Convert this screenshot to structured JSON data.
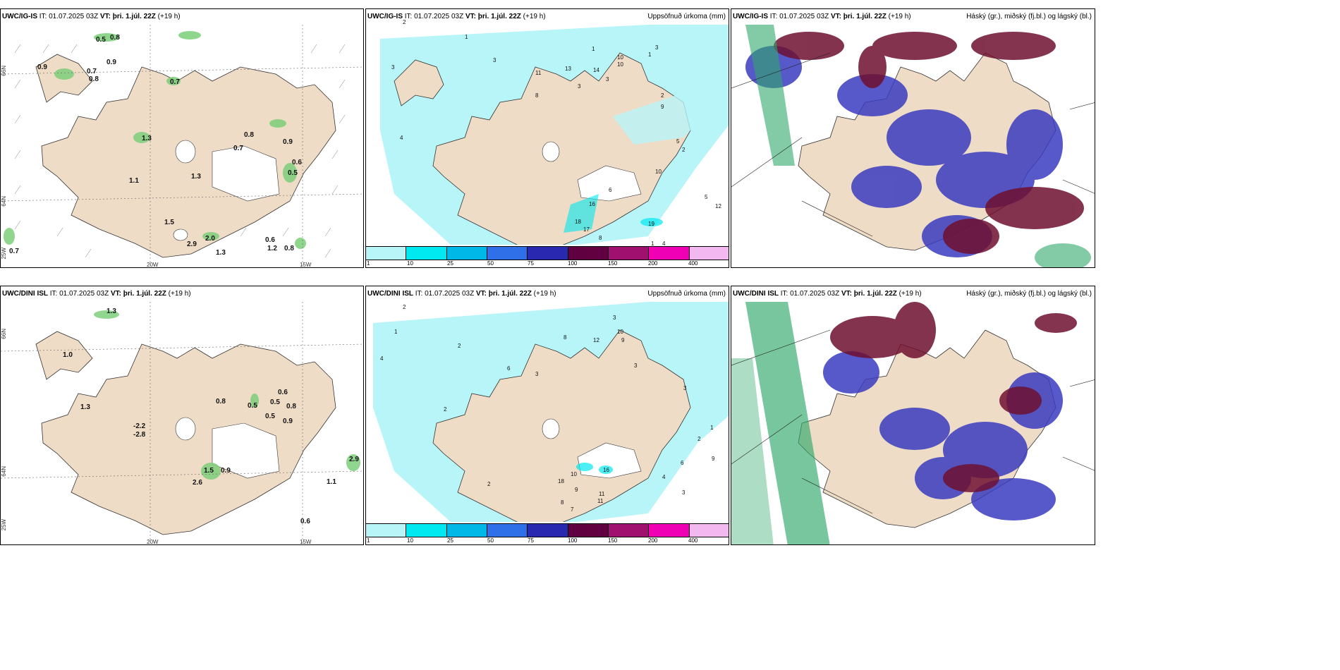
{
  "rows": [
    {
      "model": "UWC/IG-IS",
      "it": "IT: 01.07.2025 03Z",
      "vt_label": "VT:",
      "vt": "þri. 1.júl. 22Z",
      "lead": "(+19 h)",
      "wind_labels": [
        "0.5",
        "0.8",
        "0.9",
        "0.9",
        "0.7",
        "0.8",
        "0.7",
        "1.3",
        "0.8",
        "0.7",
        "1.1",
        "1.3",
        "0.9",
        "0.6",
        "0.5",
        "1.5",
        "2.0",
        "2.9",
        "1.3",
        "0.6",
        "1.2",
        "0.8",
        "0.7"
      ]
    },
    {
      "model": "UWC/DINI ISL",
      "it": "IT: 01.07.2025 03Z",
      "vt_label": "VT:",
      "vt": "þri. 1.júl. 22Z",
      "lead": "(+19 h)",
      "wind_labels": [
        "1.3",
        "1.0",
        "1.3",
        "0.8",
        "0.5",
        "0.6",
        "0.5",
        "0.8",
        "0.5",
        "0.9",
        "-2.2",
        "-2.8",
        "1.5",
        "0.9",
        "2.6",
        "2.9",
        "1.1",
        "0.6"
      ]
    }
  ],
  "titles": {
    "precip": "Uppsöfnuð úrkoma (mm)",
    "clouds": "Háský (gr.), miðský (fj.bl.) og lágský (bl.)"
  },
  "axes": {
    "lon_20": "20W",
    "lon_15": "15W",
    "lat_66": "66N",
    "lat_64": "64N",
    "lon_25": "25W"
  },
  "colorbar": {
    "ticks": [
      "1",
      "10",
      "25",
      "50",
      "75",
      "100",
      "150",
      "200",
      "400"
    ],
    "colors": [
      "#b8f5f8",
      "#00e8f0",
      "#00b8e8",
      "#2f6fe8",
      "#2828b0",
      "#600040",
      "#a0106e",
      "#f000b4",
      "#f4b8f0"
    ]
  },
  "precip_labels_top": [
    "2",
    "1",
    "1",
    "3",
    "3",
    "1",
    "10",
    "10",
    "3",
    "13",
    "14",
    "11",
    "8",
    "3",
    "3",
    "4",
    "2",
    "9",
    "5",
    "17",
    "16",
    "18",
    "8",
    "19",
    "12",
    "5",
    "4",
    "1",
    "2",
    "6",
    "10"
  ],
  "precip_labels_bottom": [
    "2",
    "1",
    "4",
    "2",
    "3",
    "8",
    "10",
    "12",
    "9",
    "3",
    "3",
    "6",
    "2",
    "3",
    "10",
    "16",
    "18",
    "9",
    "11",
    "8",
    "4",
    "6",
    "9",
    "3",
    "2",
    "7",
    "11",
    "2",
    "1"
  ],
  "colors": {
    "land": "#efdcc6",
    "precip": "#b8f5f8",
    "cloud_high": "#6f1030",
    "cloud_mid": "#3a3cc0",
    "cloud_low": "#2fa86a"
  }
}
